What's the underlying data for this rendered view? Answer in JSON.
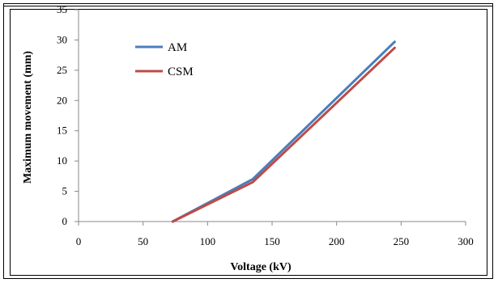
{
  "chart_data": {
    "type": "line",
    "title": "",
    "xlabel": "Voltage (kV)",
    "ylabel": "Maximum movement (mm)",
    "xlim": [
      0,
      300
    ],
    "ylim": [
      0,
      35
    ],
    "xticks": [
      0,
      50,
      100,
      150,
      200,
      250,
      300
    ],
    "yticks": [
      0,
      5,
      10,
      15,
      20,
      25,
      30,
      35
    ],
    "grid": false,
    "legend_position": "top-left",
    "series": [
      {
        "name": "AM",
        "color": "#4a7ebb",
        "x": [
          73,
          135,
          245
        ],
        "y": [
          0,
          7,
          29.7
        ]
      },
      {
        "name": "CSM",
        "color": "#be4b48",
        "x": [
          73,
          135,
          245
        ],
        "y": [
          0,
          6.5,
          28.7
        ]
      }
    ]
  }
}
